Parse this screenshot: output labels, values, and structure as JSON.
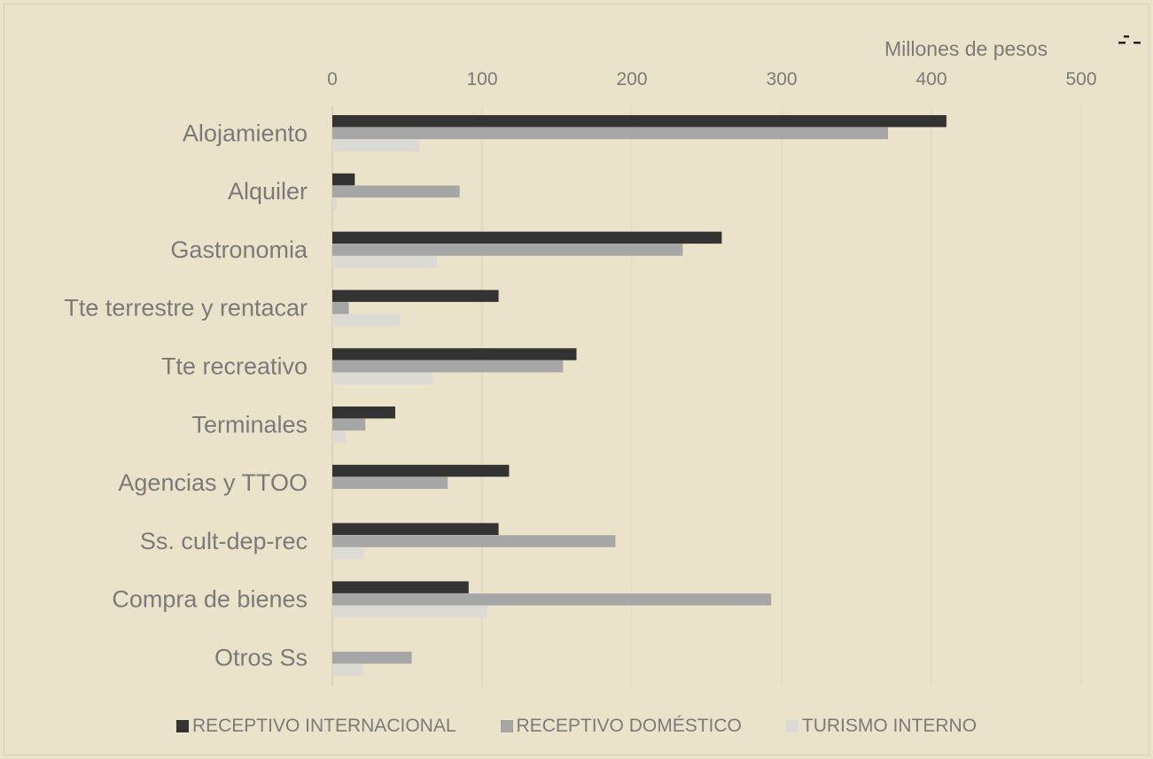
{
  "chart_data": {
    "type": "bar",
    "orientation": "horizontal",
    "title": "",
    "xlabel": "Millones de pesos",
    "ylabel": "",
    "xlim": [
      0,
      500
    ],
    "x_ticks": [
      0,
      100,
      200,
      300,
      400,
      500
    ],
    "x_axis_position": "top",
    "grid": true,
    "legend_position": "bottom",
    "categories": [
      "Alojamiento",
      "Alquiler",
      "Gastronomia",
      "Tte terrestre y rentacar",
      "Tte recreativo",
      "Terminales",
      "Agencias y TTOO",
      "Ss. cult-dep-rec",
      "Compra de bienes",
      "Otros Ss"
    ],
    "series": [
      {
        "name": "RECEPTIVO INTERNACIONAL",
        "color": "#333333",
        "values": [
          410,
          15,
          260,
          111,
          163,
          42,
          118,
          111,
          91,
          0
        ]
      },
      {
        "name": "RECEPTIVO DOMÉSTICO",
        "color": "#a6a6a6",
        "values": [
          371,
          85,
          234,
          11,
          154,
          22,
          77,
          189,
          293,
          53
        ]
      },
      {
        "name": "TURISMO INTERNO",
        "color": "#dcdad5",
        "values": [
          58,
          3,
          70,
          45,
          67,
          9,
          0,
          21,
          103,
          20
        ]
      }
    ]
  },
  "legend": {
    "items": [
      {
        "label": "RECEPTIVO INTERNACIONAL",
        "color": "#333333"
      },
      {
        "label": "RECEPTIVO DOMÉSTICO",
        "color": "#a6a6a6"
      },
      {
        "label": "TURISMO INTERNO",
        "color": "#dcdad5"
      }
    ]
  },
  "corner_icon": "chart-options-icon"
}
